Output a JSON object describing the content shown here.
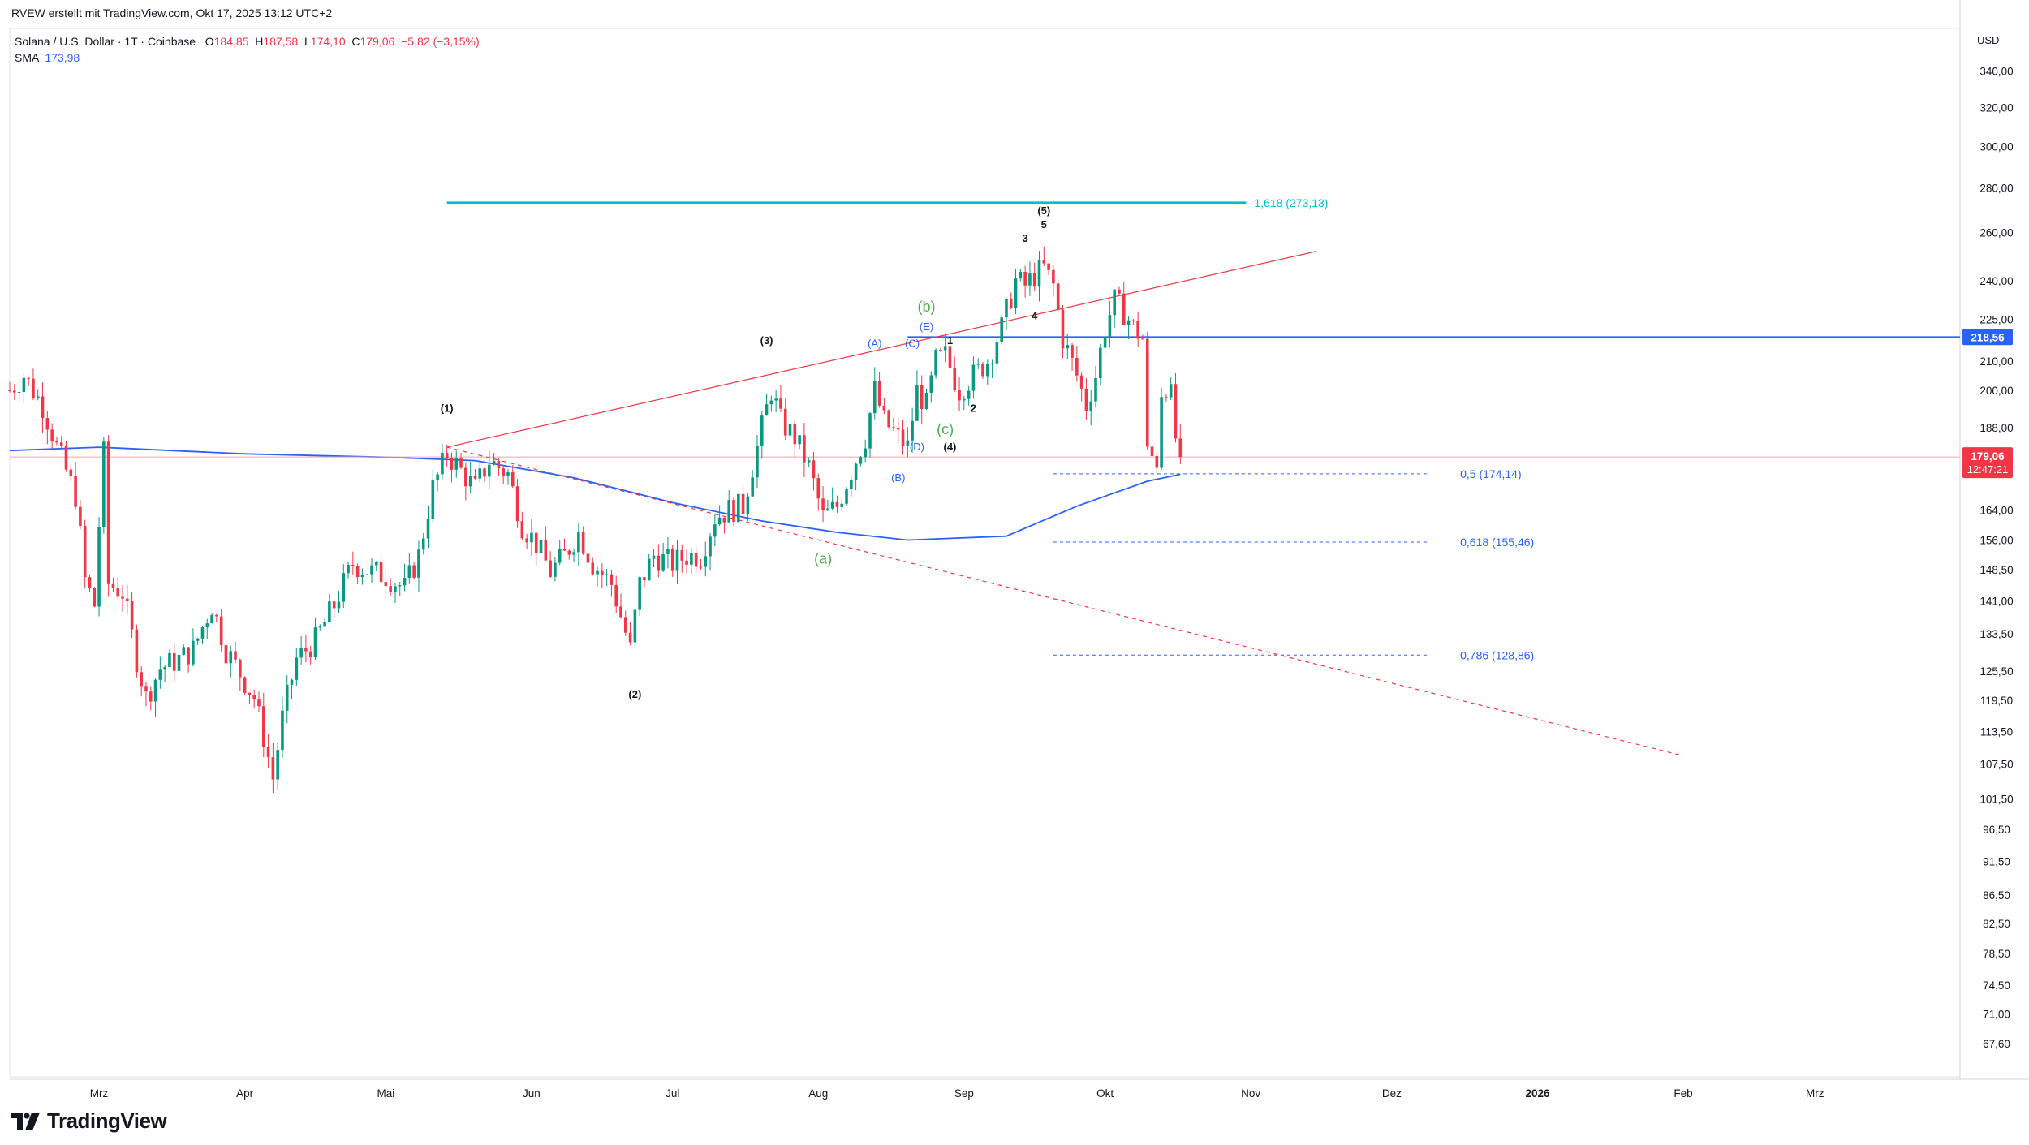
{
  "header": {
    "credit": "RVEW erstellt mit TradingView.com, Okt 17, 2025 13:12 UTC+2"
  },
  "legend": {
    "symbol": "Solana / U.S. Dollar · 1T · Coinbase",
    "open_label": "O",
    "open": "184,85",
    "high_label": "H",
    "high": "187,58",
    "low_label": "L",
    "low": "174,10",
    "close_label": "C",
    "close": "179,06",
    "change": "−5,82 (−3,15%)",
    "sma_label": "SMA",
    "sma_value": "173,98"
  },
  "price_axis": {
    "currency": "USD",
    "last_price": "179,06",
    "countdown": "12:47:21",
    "level_tag": "218,56"
  },
  "footer": {
    "logo": "TradingView"
  },
  "colors": {
    "up": "#089981",
    "down": "#f23645",
    "sma": "#2962ff",
    "fib_ext": "#00bcd4",
    "trend": "#f23645",
    "fib_retrace": "#2962ff",
    "wave_green": "#4caf50",
    "wave_blue": "#2962ff",
    "wave_black": "#131722"
  },
  "chart_data": {
    "type": "candlestick",
    "title": "Solana / U.S. Dollar · 1T · Coinbase",
    "scale": "log",
    "ylim": [
      65,
      360
    ],
    "x_range": [
      "2025-02-10",
      "2026-03-31"
    ],
    "y_ticks": [
      "340,00",
      "320,00",
      "300,00",
      "280,00",
      "260,00",
      "240,00",
      "225,00",
      "210,00",
      "200,00",
      "188,00",
      "164,00",
      "156,00",
      "148,50",
      "141,00",
      "133,50",
      "125,50",
      "119,50",
      "113,50",
      "107,50",
      "101,50",
      "96,50",
      "91,50",
      "86,50",
      "82,50",
      "78,50",
      "74,50",
      "71,00",
      "67,60"
    ],
    "x_ticks": [
      {
        "label": "Mrz",
        "date": "2025-03-01"
      },
      {
        "label": "Apr",
        "date": "2025-04-01"
      },
      {
        "label": "Mai",
        "date": "2025-05-01"
      },
      {
        "label": "Jun",
        "date": "2025-06-01"
      },
      {
        "label": "Jul",
        "date": "2025-07-01"
      },
      {
        "label": "Aug",
        "date": "2025-08-01"
      },
      {
        "label": "Sep",
        "date": "2025-09-01"
      },
      {
        "label": "Okt",
        "date": "2025-10-01"
      },
      {
        "label": "Nov",
        "date": "2025-11-01"
      },
      {
        "label": "Dez",
        "date": "2025-12-01"
      },
      {
        "label": "2026",
        "date": "2026-01-01"
      },
      {
        "label": "Feb",
        "date": "2026-02-01"
      },
      {
        "label": "Mrz",
        "date": "2026-03-01"
      }
    ],
    "price_anchors": [
      [
        "2025-02-10",
        200
      ],
      [
        "2025-02-13",
        205
      ],
      [
        "2025-02-17",
        195
      ],
      [
        "2025-02-20",
        182
      ],
      [
        "2025-02-24",
        168
      ],
      [
        "2025-02-26",
        146
      ],
      [
        "2025-02-28",
        140
      ],
      [
        "2025-03-02",
        180
      ],
      [
        "2025-03-03",
        145
      ],
      [
        "2025-03-06",
        143
      ],
      [
        "2025-03-09",
        128
      ],
      [
        "2025-03-11",
        120
      ],
      [
        "2025-03-14",
        126
      ],
      [
        "2025-03-18",
        128
      ],
      [
        "2025-03-21",
        130
      ],
      [
        "2025-03-25",
        140
      ],
      [
        "2025-03-28",
        130
      ],
      [
        "2025-03-31",
        125
      ],
      [
        "2025-04-03",
        120
      ],
      [
        "2025-04-07",
        105
      ],
      [
        "2025-04-09",
        116
      ],
      [
        "2025-04-12",
        128
      ],
      [
        "2025-04-16",
        132
      ],
      [
        "2025-04-20",
        140
      ],
      [
        "2025-04-24",
        150
      ],
      [
        "2025-04-28",
        148
      ],
      [
        "2025-05-01",
        147
      ],
      [
        "2025-05-05",
        144
      ],
      [
        "2025-05-08",
        152
      ],
      [
        "2025-05-11",
        170
      ],
      [
        "2025-05-14",
        180
      ],
      [
        "2025-05-17",
        175
      ],
      [
        "2025-05-20",
        170
      ],
      [
        "2025-05-23",
        178
      ],
      [
        "2025-05-27",
        174
      ],
      [
        "2025-05-30",
        160
      ],
      [
        "2025-06-02",
        155
      ],
      [
        "2025-06-05",
        148
      ],
      [
        "2025-06-08",
        152
      ],
      [
        "2025-06-11",
        158
      ],
      [
        "2025-06-14",
        150
      ],
      [
        "2025-06-18",
        145
      ],
      [
        "2025-06-22",
        130
      ],
      [
        "2025-06-24",
        145
      ],
      [
        "2025-06-27",
        152
      ],
      [
        "2025-07-01",
        150
      ],
      [
        "2025-07-04",
        152
      ],
      [
        "2025-07-07",
        152
      ],
      [
        "2025-07-10",
        162
      ],
      [
        "2025-07-13",
        164
      ],
      [
        "2025-07-16",
        165
      ],
      [
        "2025-07-19",
        182
      ],
      [
        "2025-07-22",
        200
      ],
      [
        "2025-07-24",
        190
      ],
      [
        "2025-07-27",
        185
      ],
      [
        "2025-07-30",
        176
      ],
      [
        "2025-08-02",
        162
      ],
      [
        "2025-08-05",
        165
      ],
      [
        "2025-08-08",
        175
      ],
      [
        "2025-08-11",
        185
      ],
      [
        "2025-08-13",
        200
      ],
      [
        "2025-08-15",
        190
      ],
      [
        "2025-08-18",
        185
      ],
      [
        "2025-08-20",
        182
      ],
      [
        "2025-08-22",
        200
      ],
      [
        "2025-08-24",
        195
      ],
      [
        "2025-08-26",
        210
      ],
      [
        "2025-08-28",
        212
      ],
      [
        "2025-08-31",
        200
      ],
      [
        "2025-09-03",
        205
      ],
      [
        "2025-09-06",
        210
      ],
      [
        "2025-09-09",
        222
      ],
      [
        "2025-09-12",
        240
      ],
      [
        "2025-09-14",
        238
      ],
      [
        "2025-09-16",
        242
      ],
      [
        "2025-09-18",
        245
      ],
      [
        "2025-09-20",
        238
      ],
      [
        "2025-09-22",
        218
      ],
      [
        "2025-09-25",
        205
      ],
      [
        "2025-09-27",
        195
      ],
      [
        "2025-09-29",
        205
      ],
      [
        "2025-10-01",
        222
      ],
      [
        "2025-10-03",
        232
      ],
      [
        "2025-10-05",
        228
      ],
      [
        "2025-10-07",
        222
      ],
      [
        "2025-10-09",
        218
      ],
      [
        "2025-10-10",
        180
      ],
      [
        "2025-10-12",
        178
      ],
      [
        "2025-10-13",
        200
      ],
      [
        "2025-10-14",
        202
      ],
      [
        "2025-10-15",
        198
      ],
      [
        "2025-10-16",
        184.85
      ],
      [
        "2025-10-17",
        179.06
      ]
    ],
    "sma": [
      [
        "2025-02-10",
        181
      ],
      [
        "2025-03-01",
        182
      ],
      [
        "2025-04-01",
        180
      ],
      [
        "2025-05-01",
        179
      ],
      [
        "2025-05-20",
        178
      ],
      [
        "2025-06-10",
        173
      ],
      [
        "2025-07-01",
        166
      ],
      [
        "2025-07-20",
        161
      ],
      [
        "2025-08-05",
        158
      ],
      [
        "2025-08-20",
        156
      ],
      [
        "2025-09-10",
        157
      ],
      [
        "2025-09-25",
        165
      ],
      [
        "2025-10-10",
        172
      ],
      [
        "2025-10-17",
        173.98
      ]
    ],
    "annotations": {
      "fib_extension": {
        "label": "1,618 (273,13)",
        "price": 273.13,
        "from": "2025-05-14",
        "to": "2025-10-31"
      },
      "horizontal_level": {
        "price": 218.56,
        "from": "2025-08-20"
      },
      "fib_retracements": [
        {
          "label": "0,5 (174,14)",
          "price": 174.14
        },
        {
          "label": "0,618 (155,46)",
          "price": 155.46
        },
        {
          "label": "0,786 (128,86)",
          "price": 128.86
        }
      ],
      "fib_from": "2025-09-20",
      "fib_to": "2025-11-30",
      "upper_trendline": [
        [
          "2025-05-14",
          182
        ],
        [
          "2025-11-15",
          252
        ]
      ],
      "lower_trendline": [
        [
          "2025-05-14",
          182
        ],
        [
          "2026-02-01",
          109
        ]
      ],
      "last_price_line": 179.06,
      "wave_labels": [
        {
          "text": "(1)",
          "date": "2025-05-14",
          "price": 193,
          "color": "black"
        },
        {
          "text": "(2)",
          "date": "2025-06-23",
          "price": 120,
          "color": "black"
        },
        {
          "text": "(3)",
          "date": "2025-07-21",
          "price": 216,
          "color": "black"
        },
        {
          "text": "(4)",
          "date": "2025-08-29",
          "price": 181,
          "color": "black"
        },
        {
          "text": "(5)",
          "date": "2025-09-18",
          "price": 268,
          "color": "black"
        },
        {
          "text": "1",
          "date": "2025-08-29",
          "price": 216,
          "color": "black"
        },
        {
          "text": "2",
          "date": "2025-09-03",
          "price": 193,
          "color": "black"
        },
        {
          "text": "3",
          "date": "2025-09-14",
          "price": 256,
          "color": "black"
        },
        {
          "text": "4",
          "date": "2025-09-16",
          "price": 225,
          "color": "black"
        },
        {
          "text": "5",
          "date": "2025-09-18",
          "price": 262,
          "color": "black"
        },
        {
          "text": "(A)",
          "date": "2025-08-13",
          "price": 215,
          "color": "blue"
        },
        {
          "text": "(B)",
          "date": "2025-08-18",
          "price": 172,
          "color": "blue"
        },
        {
          "text": "(C)",
          "date": "2025-08-21",
          "price": 215,
          "color": "blue"
        },
        {
          "text": "(D)",
          "date": "2025-08-22",
          "price": 181,
          "color": "blue"
        },
        {
          "text": "(E)",
          "date": "2025-08-24",
          "price": 221,
          "color": "blue"
        },
        {
          "text": "(a)",
          "date": "2025-08-02",
          "price": 150,
          "color": "green"
        },
        {
          "text": "(b)",
          "date": "2025-08-24",
          "price": 228,
          "color": "green"
        },
        {
          "text": "(c)",
          "date": "2025-08-28",
          "price": 186,
          "color": "green"
        }
      ]
    }
  }
}
